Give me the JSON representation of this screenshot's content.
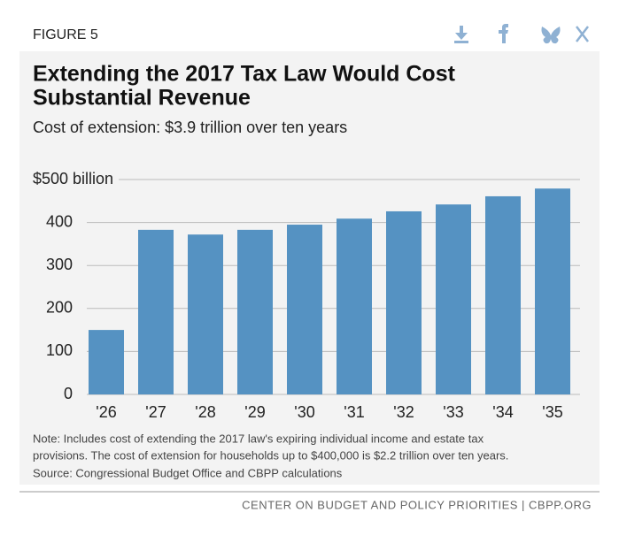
{
  "header": {
    "figure": "FIGURE 5"
  },
  "chart_data": {
    "type": "bar",
    "title_lines": [
      "Extending the 2017 Tax Law Would Cost",
      "Substantial Revenue"
    ],
    "subtitle": "Cost of extension: $3.9 trillion over ten years",
    "categories": [
      "'26",
      "'27",
      "'28",
      "'29",
      "'30",
      "'31",
      "'32",
      "'33",
      "'34",
      "'35"
    ],
    "values": [
      150,
      383,
      372,
      383,
      395,
      409,
      426,
      442,
      461,
      479
    ],
    "color": "#5592c2",
    "ylim": [
      0,
      500
    ],
    "yticks": [
      0,
      100,
      200,
      300,
      400,
      {
        "value": 500,
        "label": "$500 billion"
      }
    ],
    "grid": true
  },
  "notes": {
    "note_lines": [
      "Note: Includes cost of extending the 2017 law's expiring individual income and estate tax",
      "provisions. The cost of extension for households up to $400,000 is $2.2 trillion over ten years."
    ],
    "source": "Source: Congressional Budget Office and CBPP calculations"
  },
  "footer": {
    "credit": "CENTER ON BUDGET AND POLICY PRIORITIES | CBPP.ORG"
  }
}
